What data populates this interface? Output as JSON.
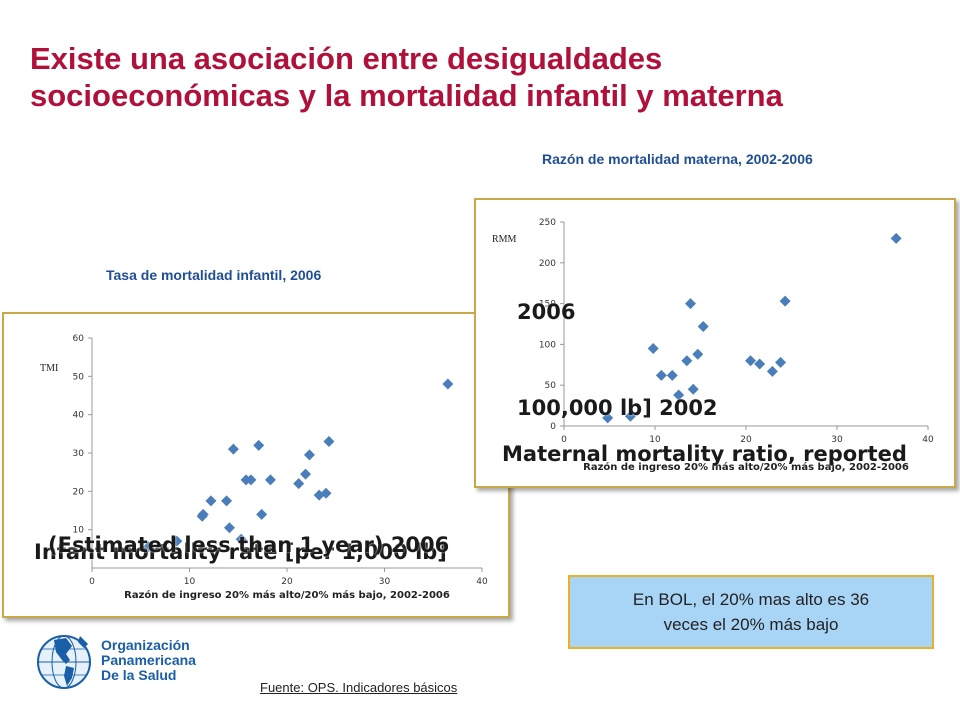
{
  "slide": {
    "title_line1": "Existe una asociación entre desigualdades",
    "title_line2": "socioeconómicas y la mortalidad infantil y materna",
    "note_line1": "En BOL, el 20% mas alto es 36",
    "note_line2": "veces el 20% más bajo",
    "org_line1": "Organización",
    "org_line2": "Panamericana",
    "org_line3": "De la Salud",
    "source": "Fuente: OPS. Indicadores básicos",
    "overlay_imr_1": "Infant mortality rate [per 1,000 lb]",
    "overlay_imr_2": "(Estimated less than 1 year) 2006",
    "overlay_mmr_1": "Maternal mortality ratio, reported",
    "overlay_mmr_2": "100,000 lb] 2002",
    "overlay_mmr_3": "2006",
    "colors": {
      "title": "#b0103a",
      "chart_title": "#1f4e96",
      "marker": "#4a7ebb",
      "frame": "#c9a84a",
      "note_bg": "#a8d4f6",
      "org": "#1a5ea8"
    }
  },
  "chart_data": [
    {
      "type": "scatter",
      "title": "Tasa de mortalidad infantil, 2006",
      "xlabel": "Razón de ingreso 20% más alto/20% más bajo, 2002-2006",
      "ylabel": "TMI",
      "xlim": [
        0,
        40
      ],
      "ylim": [
        0,
        60
      ],
      "x_ticks": [
        "0",
        "10",
        "20",
        "30",
        "40"
      ],
      "y_ticks": [
        "10",
        "20",
        "30",
        "40",
        "50",
        "60"
      ],
      "grid": false,
      "legend": "none",
      "x": [
        5.8,
        8.7,
        11.3,
        11.4,
        12.2,
        13.8,
        14.1,
        14.5,
        15.3,
        15.8,
        16.3,
        17.1,
        17.4,
        18.3,
        21.2,
        21.9,
        22.3,
        23.3,
        24.0,
        24.3,
        36.5
      ],
      "y": [
        5.5,
        7.0,
        13.5,
        14.0,
        17.5,
        17.5,
        10.5,
        31.0,
        7.5,
        23.0,
        23.0,
        32.0,
        14.0,
        23.0,
        22.0,
        24.5,
        29.5,
        19.0,
        19.5,
        33.0,
        48.0
      ]
    },
    {
      "type": "scatter",
      "title": "Razón de mortalidad materna, 2002-2006",
      "xlabel": "Razón de ingreso 20% más alto/20% más bajo, 2002-2006",
      "ylabel": "RMM",
      "xlim": [
        0,
        40
      ],
      "ylim": [
        0,
        250
      ],
      "x_ticks": [
        "0",
        "10",
        "20",
        "30",
        "40"
      ],
      "y_ticks": [
        "0",
        "50",
        "100",
        "150",
        "200",
        "250"
      ],
      "grid": false,
      "legend": "none",
      "x": [
        4.8,
        7.3,
        9.8,
        10.7,
        11.9,
        12.6,
        13.5,
        13.9,
        14.2,
        14.7,
        15.3,
        20.5,
        21.5,
        22.9,
        23.8,
        24.3,
        36.5
      ],
      "y": [
        10.0,
        12.0,
        95.0,
        62.0,
        62.0,
        38.0,
        80.0,
        150.0,
        45.0,
        88.0,
        122.0,
        80.0,
        76.0,
        67.0,
        78.0,
        153.0,
        230.0
      ]
    }
  ]
}
